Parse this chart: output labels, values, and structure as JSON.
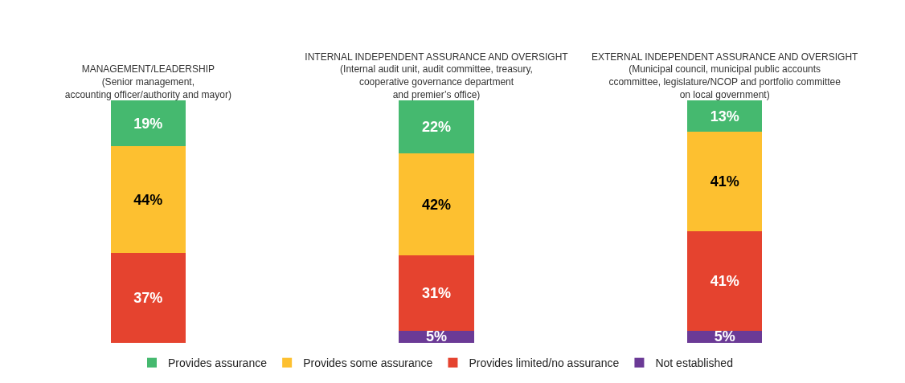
{
  "chart_data": {
    "type": "bar",
    "stacked": true,
    "categories": [
      "MANAGEMENT/LEADERSHIP\n(Senior management,\naccounting officer/authority and mayor)",
      "INTERNAL INDEPENDENT ASSURANCE AND OVERSIGHT\n(Internal audit unit, audit committee, treasury,\ncooperative governance department\nand premier’s office)",
      "EXTERNAL INDEPENDENT ASSURANCE AND OVERSIGHT\n(Municipal council, municipal public accounts\nccommittee, legislature/NCOP and portfolio committee\non local government)"
    ],
    "series": [
      {
        "name": "Not established",
        "color": "#6b3a96",
        "values": [
          null,
          5,
          5
        ],
        "value_labels": [
          null,
          "5%",
          "5%"
        ]
      },
      {
        "name": "Provides limited/no assurance",
        "color": "#e5432f",
        "values": [
          37,
          31,
          41
        ],
        "value_labels": [
          "37%",
          "31%",
          "41%"
        ]
      },
      {
        "name": "Provides some assurance",
        "color": "#fdc030",
        "values": [
          44,
          42,
          41
        ],
        "value_labels": [
          "44%",
          "42%",
          "41%"
        ]
      },
      {
        "name": "Provides assurance",
        "color": "#45b96f",
        "values": [
          19,
          22,
          13
        ],
        "value_labels": [
          "19%",
          "22%",
          "13%"
        ]
      }
    ],
    "legend": "bottom"
  }
}
